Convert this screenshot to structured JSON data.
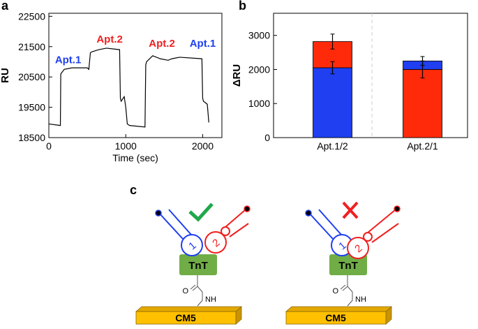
{
  "chart_data": [
    {
      "type": "line",
      "panel": "a",
      "xlabel": "Time (sec)",
      "ylabel": "RU",
      "x": [
        0,
        150,
        155,
        200,
        300,
        500,
        520,
        540,
        560,
        650,
        750,
        920,
        930,
        940,
        980,
        1000,
        1020,
        1050,
        1250,
        1260,
        1270,
        1350,
        1450,
        1550,
        1600,
        1700,
        1990,
        2000,
        2010,
        2060,
        2080
      ],
      "series": [
        {
          "color": "#000000",
          "values": [
            18950,
            18900,
            20600,
            20750,
            20800,
            20800,
            20750,
            21300,
            21330,
            21400,
            21450,
            21400,
            19800,
            19700,
            19850,
            19500,
            18950,
            18900,
            18850,
            20900,
            21000,
            21200,
            21100,
            21050,
            21100,
            21150,
            21100,
            19800,
            19700,
            19600,
            19000
          ]
        }
      ],
      "annotations": [
        {
          "text": "Apt.1",
          "color": "#1f3ff0"
        },
        {
          "text": "Apt.2",
          "color": "#f01f1f"
        },
        {
          "text": "Apt.2",
          "color": "#f01f1f"
        },
        {
          "text": "Apt.1",
          "color": "#1f3ff0"
        }
      ],
      "xlim": [
        0,
        2250
      ],
      "xticks": [
        0,
        1000,
        2000
      ],
      "ylim": [
        18500,
        22600
      ],
      "yticks": [
        18500,
        19500,
        20500,
        21500,
        22500
      ]
    },
    {
      "type": "stacked_bar",
      "panel": "b",
      "ylabel": "ΔRU",
      "categories": [
        "Apt.1/2",
        "Apt.2/1"
      ],
      "series": [
        {
          "colors": [
            "#1f3ff0",
            "#ff2a0a"
          ],
          "values": [
            2050,
            2000
          ],
          "errors": [
            180,
            250
          ]
        },
        {
          "colors": [
            "#ff2a0a",
            "#1f3ff0"
          ],
          "values": [
            770,
            250
          ],
          "errors": [
            220,
            130
          ]
        }
      ],
      "ylim": [
        0,
        3650
      ],
      "yticks": [
        0,
        1000,
        2000,
        3000
      ]
    }
  ],
  "diagram": {
    "panel": "c",
    "scenes": [
      {
        "protein": "TnT",
        "surface": "CM5",
        "oxygen": "O",
        "amine": "NH",
        "aptamer1": "1",
        "aptamer2": "2"
      },
      {
        "protein": "TnT",
        "surface": "CM5",
        "oxygen": "O",
        "amine": "NH",
        "aptamer1": "1",
        "aptamer2": "2"
      }
    ]
  }
}
